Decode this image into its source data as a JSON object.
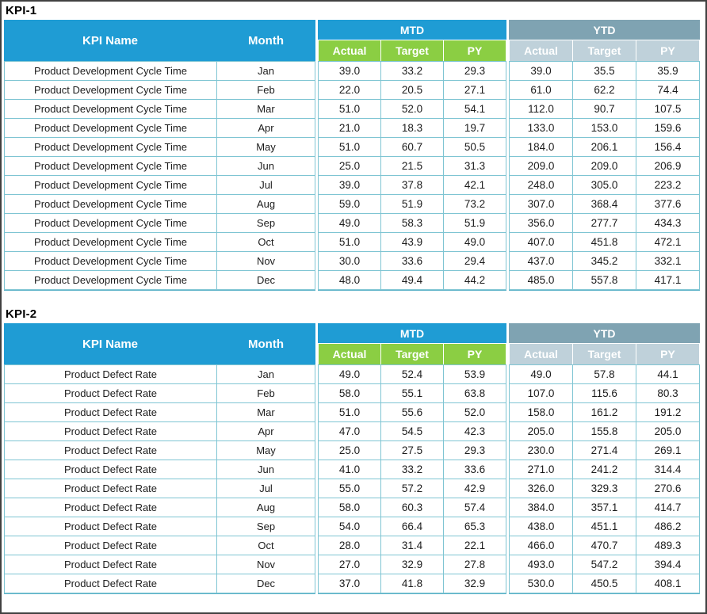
{
  "colors": {
    "header_blue": "#1f9cd4",
    "mtd_sub_green": "#8bce43",
    "ytd_band_slate": "#7fa3b2",
    "ytd_sub_light": "#bfd1da",
    "grid_border_teal": "#7fc5d3",
    "window_border": "#404040",
    "text_dark": "#1c1c1c"
  },
  "headers": {
    "kpi_name": "KPI Name",
    "month": "Month",
    "mtd": "MTD",
    "ytd": "YTD",
    "sub_columns": [
      "Actual",
      "Target",
      "PY"
    ]
  },
  "tables": [
    {
      "title": "KPI-1",
      "kpi_name": "Product Development Cycle Time",
      "rows": [
        {
          "month": "Jan",
          "mtd": [
            "39.0",
            "33.2",
            "29.3"
          ],
          "ytd": [
            "39.0",
            "35.5",
            "35.9"
          ]
        },
        {
          "month": "Feb",
          "mtd": [
            "22.0",
            "20.5",
            "27.1"
          ],
          "ytd": [
            "61.0",
            "62.2",
            "74.4"
          ]
        },
        {
          "month": "Mar",
          "mtd": [
            "51.0",
            "52.0",
            "54.1"
          ],
          "ytd": [
            "112.0",
            "90.7",
            "107.5"
          ]
        },
        {
          "month": "Apr",
          "mtd": [
            "21.0",
            "18.3",
            "19.7"
          ],
          "ytd": [
            "133.0",
            "153.0",
            "159.6"
          ]
        },
        {
          "month": "May",
          "mtd": [
            "51.0",
            "60.7",
            "50.5"
          ],
          "ytd": [
            "184.0",
            "206.1",
            "156.4"
          ]
        },
        {
          "month": "Jun",
          "mtd": [
            "25.0",
            "21.5",
            "31.3"
          ],
          "ytd": [
            "209.0",
            "209.0",
            "206.9"
          ]
        },
        {
          "month": "Jul",
          "mtd": [
            "39.0",
            "37.8",
            "42.1"
          ],
          "ytd": [
            "248.0",
            "305.0",
            "223.2"
          ]
        },
        {
          "month": "Aug",
          "mtd": [
            "59.0",
            "51.9",
            "73.2"
          ],
          "ytd": [
            "307.0",
            "368.4",
            "377.6"
          ]
        },
        {
          "month": "Sep",
          "mtd": [
            "49.0",
            "58.3",
            "51.9"
          ],
          "ytd": [
            "356.0",
            "277.7",
            "434.3"
          ]
        },
        {
          "month": "Oct",
          "mtd": [
            "51.0",
            "43.9",
            "49.0"
          ],
          "ytd": [
            "407.0",
            "451.8",
            "472.1"
          ]
        },
        {
          "month": "Nov",
          "mtd": [
            "30.0",
            "33.6",
            "29.4"
          ],
          "ytd": [
            "437.0",
            "345.2",
            "332.1"
          ]
        },
        {
          "month": "Dec",
          "mtd": [
            "48.0",
            "49.4",
            "44.2"
          ],
          "ytd": [
            "485.0",
            "557.8",
            "417.1"
          ]
        }
      ]
    },
    {
      "title": "KPI-2",
      "kpi_name": "Product Defect Rate",
      "rows": [
        {
          "month": "Jan",
          "mtd": [
            "49.0",
            "52.4",
            "53.9"
          ],
          "ytd": [
            "49.0",
            "57.8",
            "44.1"
          ]
        },
        {
          "month": "Feb",
          "mtd": [
            "58.0",
            "55.1",
            "63.8"
          ],
          "ytd": [
            "107.0",
            "115.6",
            "80.3"
          ]
        },
        {
          "month": "Mar",
          "mtd": [
            "51.0",
            "55.6",
            "52.0"
          ],
          "ytd": [
            "158.0",
            "161.2",
            "191.2"
          ]
        },
        {
          "month": "Apr",
          "mtd": [
            "47.0",
            "54.5",
            "42.3"
          ],
          "ytd": [
            "205.0",
            "155.8",
            "205.0"
          ]
        },
        {
          "month": "May",
          "mtd": [
            "25.0",
            "27.5",
            "29.3"
          ],
          "ytd": [
            "230.0",
            "271.4",
            "269.1"
          ]
        },
        {
          "month": "Jun",
          "mtd": [
            "41.0",
            "33.2",
            "33.6"
          ],
          "ytd": [
            "271.0",
            "241.2",
            "314.4"
          ]
        },
        {
          "month": "Jul",
          "mtd": [
            "55.0",
            "57.2",
            "42.9"
          ],
          "ytd": [
            "326.0",
            "329.3",
            "270.6"
          ]
        },
        {
          "month": "Aug",
          "mtd": [
            "58.0",
            "60.3",
            "57.4"
          ],
          "ytd": [
            "384.0",
            "357.1",
            "414.7"
          ]
        },
        {
          "month": "Sep",
          "mtd": [
            "54.0",
            "66.4",
            "65.3"
          ],
          "ytd": [
            "438.0",
            "451.1",
            "486.2"
          ]
        },
        {
          "month": "Oct",
          "mtd": [
            "28.0",
            "31.4",
            "22.1"
          ],
          "ytd": [
            "466.0",
            "470.7",
            "489.3"
          ]
        },
        {
          "month": "Nov",
          "mtd": [
            "27.0",
            "32.9",
            "27.8"
          ],
          "ytd": [
            "493.0",
            "547.2",
            "394.4"
          ]
        },
        {
          "month": "Dec",
          "mtd": [
            "37.0",
            "41.8",
            "32.9"
          ],
          "ytd": [
            "530.0",
            "450.5",
            "408.1"
          ]
        }
      ]
    }
  ]
}
